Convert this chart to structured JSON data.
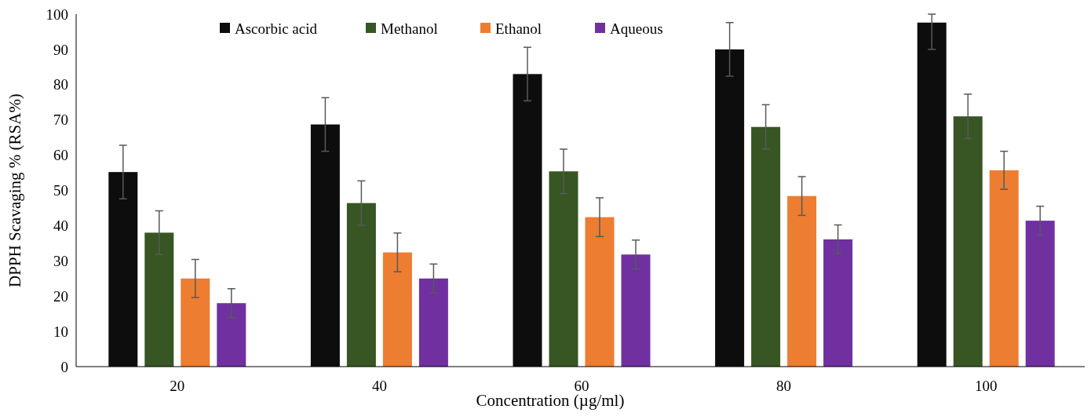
{
  "chart_data": {
    "type": "bar",
    "xlabel": "Concentration (µg/ml)",
    "ylabel": "DPPH Scavaging % (RSA%)",
    "categories": [
      "20",
      "40",
      "60",
      "80",
      "100"
    ],
    "series": [
      {
        "name": "Ascorbic acid",
        "color": "#0d0d0d",
        "values": [
          55.2,
          68.7,
          83,
          90,
          97.6
        ],
        "errors": [
          7.6,
          7.6,
          7.6,
          7.6,
          [
            90,
            100
          ]
        ]
      },
      {
        "name": "Methanol",
        "color": "#375623",
        "values": [
          38,
          46.4,
          55.4,
          68,
          71
        ],
        "errors": [
          6.2,
          6.3,
          6.3,
          6.3,
          6.3
        ]
      },
      {
        "name": "Ethanol",
        "color": "#ed7d31",
        "values": [
          25,
          32.4,
          42.4,
          48.4,
          55.7
        ],
        "errors": [
          5.4,
          5.5,
          5.5,
          5.5,
          5.4
        ]
      },
      {
        "name": "Aqueous",
        "color": "#7030a0",
        "values": [
          18,
          25,
          31.8,
          36.1,
          41.4
        ],
        "errors": [
          4.1,
          4.1,
          4.1,
          4.1,
          4.1
        ]
      }
    ],
    "ylim": [
      0,
      100
    ],
    "yticks": [
      0,
      10,
      20,
      30,
      40,
      50,
      60,
      70,
      80,
      90,
      100
    ],
    "grid": false,
    "legend": "top"
  }
}
